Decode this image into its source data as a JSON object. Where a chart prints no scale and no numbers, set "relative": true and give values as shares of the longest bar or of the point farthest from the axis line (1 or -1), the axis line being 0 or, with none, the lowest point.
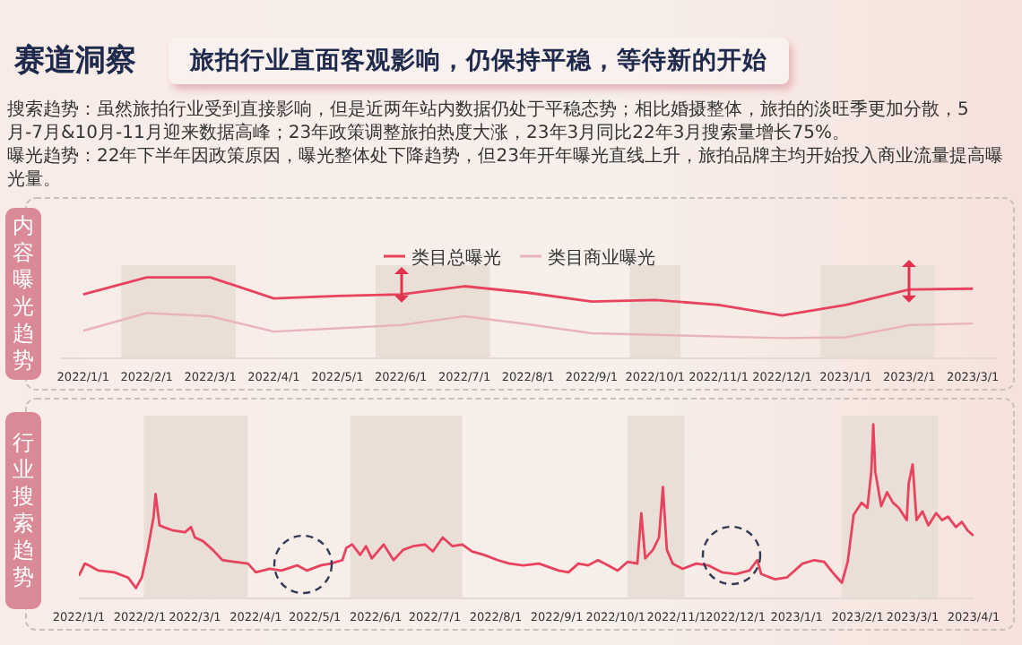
{
  "chart_data": [
    {
      "type": "line",
      "title": "赛道洞察",
      "subtitle": "旅拍行业直面客观影响，仍保持平稳，等待新的开始",
      "annotations": [
        "搜索趋势：虽然旅拍行业受到直接影响，但是近两年站内数据仍处于平稳态势；相比婚摄整体，旅拍的淡旺季更加分散，5月-7月&10月-11月迎来数据高峰；23年政策调整旅拍热度大涨，23年3月同比22年3月搜索量增长75%。",
        "曝光趋势：22年下半年因政策原因，曝光整体处下降趋势，但23年开年曝光直线上升，旅拍品牌主均开始投入商业流量提高曝光量。"
      ],
      "ylabel": "内容曝光趋势",
      "relative": true,
      "legend": "top",
      "grid": false,
      "marker": "none",
      "line_style": "solid",
      "categories": [
        "2022/1/1",
        "2022/2/1",
        "2022/3/1",
        "2022/4/1",
        "2022/5/1",
        "2022/6/1",
        "2022/7/1",
        "2022/8/1",
        "2022/9/1",
        "2022/10/1",
        "2022/11/1",
        "2022/12/1",
        "2023/1/1",
        "2023/2/1",
        "2023/3/1"
      ],
      "bands": [
        {
          "axis": "x",
          "from": "2022/2/1",
          "to": "2022/3/1",
          "color": "#eadfd6"
        },
        {
          "axis": "x",
          "from": "2022/6/1",
          "to": "2022/7/1",
          "color": "#eadfd6"
        },
        {
          "axis": "x",
          "from": "2022/10/1",
          "to": "2022/10/1",
          "color": "#eadfd6"
        },
        {
          "axis": "x",
          "from": "2023/1/1",
          "to": "2023/2/1",
          "color": "#eadfd6"
        }
      ],
      "series": [
        {
          "name": "类目总曝光",
          "color": "#e8435e",
          "values": [
            0.79,
            1,
            1,
            0.74,
            0.77,
            0.79,
            0.89,
            0.81,
            0.7,
            0.72,
            0.66,
            0.53,
            0.66,
            0.85,
            0.86
          ]
        },
        {
          "name": "类目商业曝光",
          "color": "#e8b4b8",
          "values": [
            0.34,
            0.56,
            0.52,
            0.33,
            0.37,
            0.41,
            0.52,
            0.42,
            0.31,
            0.29,
            0.27,
            0.25,
            0.26,
            0.41,
            0.43
          ]
        }
      ]
    },
    {
      "type": "line",
      "ylabel": "行业搜索趋势",
      "relative": true,
      "legend": false,
      "grid": false,
      "marker": "none",
      "line_style": "solid",
      "xlim": [
        "2022-01-01",
        "2023-04-01"
      ],
      "xticks": [
        {
          "value": "2022-01-01",
          "label": "2022/1/1"
        },
        {
          "value": "2022-02-01",
          "label": "2022/2/1"
        },
        {
          "value": "2022-03-01",
          "label": "2022/3/1"
        },
        {
          "value": "2022-04-01",
          "label": "2022/4/1"
        },
        {
          "value": "2022-05-01",
          "label": "2022/5/1"
        },
        {
          "value": "2022-06-01",
          "label": "2022/6/1"
        },
        {
          "value": "2022-07-01",
          "label": "2022/7/1"
        },
        {
          "value": "2022-08-01",
          "label": "2022/8/1"
        },
        {
          "value": "2022-09-01",
          "label": "2022/9/1"
        },
        {
          "value": "2022-10-01",
          "label": "2022/10/1"
        },
        {
          "value": "2022-11-01",
          "label": "2022/11/1"
        },
        {
          "value": "2022-12-01",
          "label": "2022/12/1"
        },
        {
          "value": "2023-01-01",
          "label": "2023/1/1"
        },
        {
          "value": "2023-02-01",
          "label": "2023/2/1"
        },
        {
          "value": "2023-03-01",
          "label": "2023/3/1"
        },
        {
          "value": "2023-04-01",
          "label": "2023/4/1"
        }
      ],
      "bands": [
        {
          "axis": "x",
          "from": "2022-02-03",
          "to": "2022-03-28",
          "color": "#eadfd6"
        },
        {
          "axis": "x",
          "from": "2022-05-19",
          "to": "2022-07-15",
          "color": "#eadfd6"
        },
        {
          "axis": "x",
          "from": "2022-10-07",
          "to": "2022-11-05",
          "color": "#eadfd6"
        },
        {
          "axis": "x",
          "from": "2023-01-24",
          "to": "2023-03-14",
          "color": "#eadfd6"
        }
      ],
      "x": [
        "2022-01-01",
        "2022-01-04",
        "2022-01-06",
        "2022-01-11",
        "2022-01-19",
        "2022-01-26",
        "2022-01-30",
        "2022-02-02",
        "2022-02-05",
        "2022-02-08",
        "2022-02-09",
        "2022-02-11",
        "2022-02-13",
        "2022-02-18",
        "2022-02-24",
        "2022-02-27",
        "2022-03-01",
        "2022-03-05",
        "2022-03-10",
        "2022-03-15",
        "2022-03-21",
        "2022-03-28",
        "2022-04-01",
        "2022-04-08",
        "2022-04-14",
        "2022-04-22",
        "2022-04-27",
        "2022-05-04",
        "2022-05-09",
        "2022-05-15",
        "2022-05-17",
        "2022-05-20",
        "2022-05-24",
        "2022-05-27",
        "2022-05-30",
        "2022-06-05",
        "2022-06-10",
        "2022-06-15",
        "2022-06-20",
        "2022-06-26",
        "2022-06-30",
        "2022-07-05",
        "2022-07-10",
        "2022-07-15",
        "2022-07-20",
        "2022-07-26",
        "2022-08-02",
        "2022-08-08",
        "2022-08-15",
        "2022-08-23",
        "2022-09-02",
        "2022-09-07",
        "2022-09-12",
        "2022-09-17",
        "2022-09-22",
        "2022-09-27",
        "2022-10-02",
        "2022-10-07",
        "2022-10-12",
        "2022-10-14",
        "2022-10-16",
        "2022-10-20",
        "2022-10-23",
        "2022-10-25",
        "2022-10-27",
        "2022-10-30",
        "2022-11-04",
        "2022-11-11",
        "2022-11-17",
        "2022-11-24",
        "2022-12-01",
        "2022-12-08",
        "2022-12-12",
        "2022-12-14",
        "2022-12-21",
        "2022-12-27",
        "2023-01-04",
        "2023-01-10",
        "2023-01-15",
        "2023-01-20",
        "2023-01-24",
        "2023-01-27",
        "2023-01-30",
        "2023-02-03",
        "2023-02-06",
        "2023-02-08",
        "2023-02-09",
        "2023-02-10",
        "2023-02-13",
        "2023-02-16",
        "2023-02-19",
        "2023-02-22",
        "2023-02-26",
        "2023-02-27",
        "2023-03-01",
        "2023-03-03",
        "2023-03-06",
        "2023-03-09",
        "2023-03-13",
        "2023-03-16",
        "2023-03-19",
        "2023-03-23",
        "2023-03-26",
        "2023-03-29",
        "2023-04-01"
      ],
      "series": [
        {
          "color": "#e8435e",
          "values": [
            0.13,
            0.2,
            0.19,
            0.16,
            0.15,
            0.12,
            0.06,
            0.12,
            0.28,
            0.47,
            0.6,
            0.42,
            0.41,
            0.39,
            0.38,
            0.41,
            0.35,
            0.33,
            0.28,
            0.22,
            0.21,
            0.2,
            0.15,
            0.17,
            0.16,
            0.19,
            0.16,
            0.19,
            0.2,
            0.22,
            0.29,
            0.31,
            0.25,
            0.3,
            0.23,
            0.31,
            0.22,
            0.28,
            0.3,
            0.31,
            0.27,
            0.35,
            0.3,
            0.31,
            0.27,
            0.25,
            0.22,
            0.2,
            0.19,
            0.2,
            0.16,
            0.15,
            0.2,
            0.19,
            0.22,
            0.19,
            0.16,
            0.21,
            0.2,
            0.49,
            0.23,
            0.28,
            0.35,
            0.64,
            0.28,
            0.2,
            0.17,
            0.2,
            0.19,
            0.15,
            0.14,
            0.16,
            0.22,
            0.14,
            0.11,
            0.12,
            0.2,
            0.22,
            0.21,
            0.14,
            0.09,
            0.21,
            0.48,
            0.55,
            0.52,
            0.73,
            1,
            0.73,
            0.53,
            0.61,
            0.55,
            0.52,
            0.45,
            0.66,
            0.77,
            0.45,
            0.5,
            0.42,
            0.49,
            0.45,
            0.47,
            0.41,
            0.44,
            0.39,
            0.36
          ]
        }
      ]
    }
  ]
}
